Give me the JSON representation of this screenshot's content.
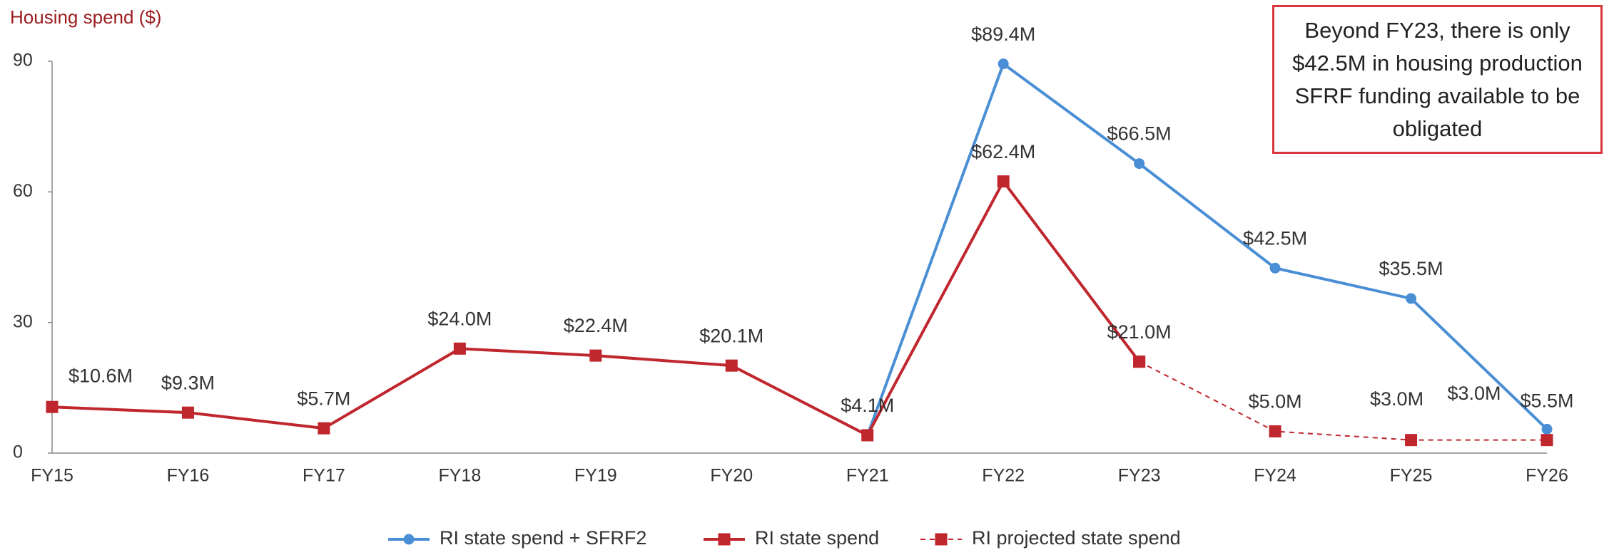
{
  "chart_data": {
    "type": "line",
    "y_label": "Housing spend ($)",
    "annotation": "Beyond FY23, there is only $42.5M in housing production SFRF funding available to be obligated",
    "categories": [
      "FY15",
      "FY16",
      "FY17",
      "FY18",
      "FY19",
      "FY20",
      "FY21",
      "FY22",
      "FY23",
      "FY24",
      "FY25",
      "FY26"
    ],
    "ylim": [
      0,
      90
    ],
    "yticks": [
      0,
      30,
      60,
      90
    ],
    "grid": false,
    "series": [
      {
        "name": "RI state spend + SFRF2",
        "color": "#4a8fd6",
        "marker": "circle",
        "line_style": "solid",
        "values": [
          null,
          null,
          null,
          null,
          null,
          null,
          4.1,
          89.4,
          66.5,
          42.5,
          35.5,
          5.5
        ],
        "value_labels": [
          null,
          null,
          null,
          null,
          null,
          null,
          null,
          "$89.4M",
          "$66.5M",
          "$42.5M",
          "$35.5M",
          "$5.5M"
        ]
      },
      {
        "name": "RI state spend",
        "color": "#c0262d",
        "marker": "square",
        "line_style": "solid",
        "values": [
          10.6,
          9.3,
          5.7,
          24.0,
          22.4,
          20.1,
          4.1,
          62.4,
          21.0,
          null,
          null,
          null
        ],
        "value_labels": [
          "$10.6M",
          "$9.3M",
          "$5.7M",
          "$24.0M",
          "$22.4M",
          "$20.1M",
          "$4.1M",
          "$62.4M",
          "$21.0M",
          null,
          null,
          null
        ]
      },
      {
        "name": "RI projected state spend",
        "color": "#c0262d",
        "marker": "square",
        "line_style": "dashed",
        "values": [
          null,
          null,
          null,
          null,
          null,
          null,
          null,
          null,
          21.0,
          5.0,
          3.0,
          3.0
        ],
        "value_labels": [
          null,
          null,
          null,
          null,
          null,
          null,
          null,
          null,
          null,
          "$5.0M",
          "$3.0M",
          "$3.0M"
        ]
      }
    ]
  }
}
